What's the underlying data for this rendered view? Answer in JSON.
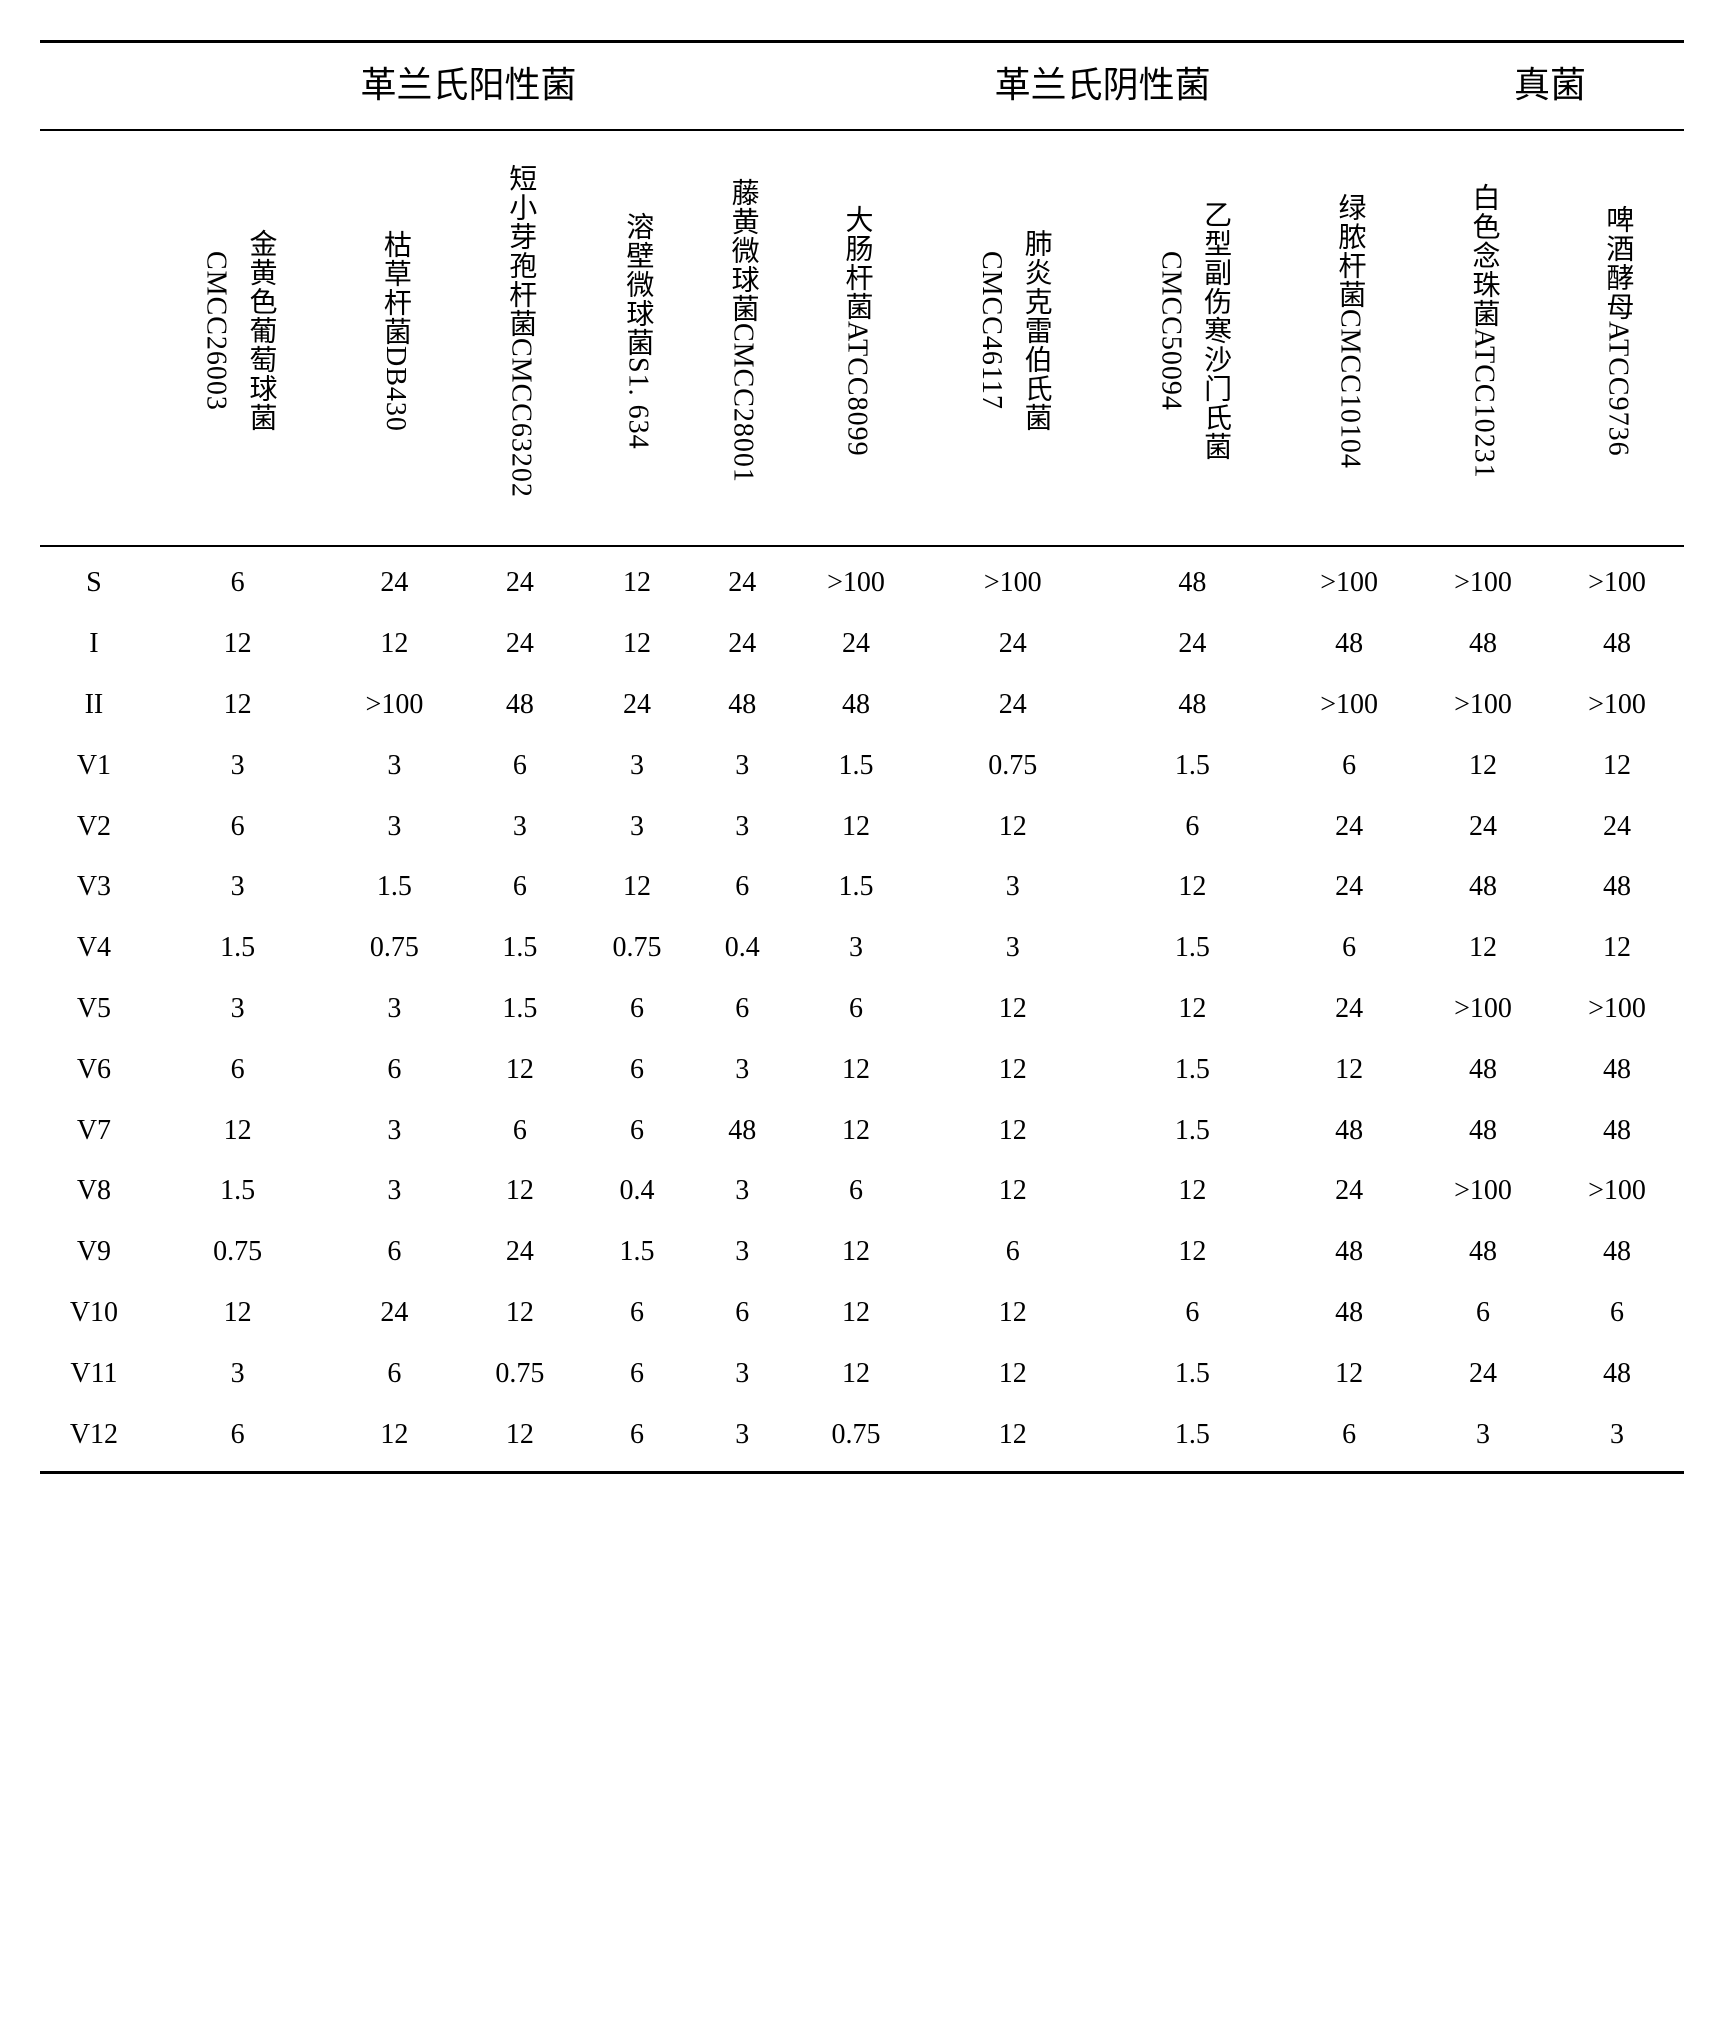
{
  "table": {
    "type": "table",
    "background_color": "#ffffff",
    "text_color": "#000000",
    "border_color": "#000000",
    "group_header_fontsize": 36,
    "cell_fontsize": 28,
    "col_header_fontsize": 28,
    "border_top_width": 3,
    "border_bottom_width": 3,
    "inner_border_width": 2,
    "groups": [
      {
        "label": "革兰氏阳性菌",
        "span": 5
      },
      {
        "label": "革兰氏阴性菌",
        "span": 4
      },
      {
        "label": "真菌",
        "span": 2
      }
    ],
    "columns": [
      "金黄色葡萄球菌CMCC26003",
      "枯草杆菌DB430",
      "短小芽孢杆菌CMCC63202",
      "溶壁微球菌S1. 634",
      "藤黄微球菌CMCC28001",
      "大肠杆菌ATCC8099",
      "肺炎克雷伯氏菌CMCC46117",
      "乙型副伤寒沙门氏菌CMCC50094",
      "绿脓杆菌CMCC10104",
      "白色念珠菌ATCC10231",
      "啤酒酵母ATCC9736"
    ],
    "row_labels": [
      "S",
      "I",
      "II",
      "V1",
      "V2",
      "V3",
      "V4",
      "V5",
      "V6",
      "V7",
      "V8",
      "V9",
      "V10",
      "V11",
      "V12"
    ],
    "rows": [
      [
        "6",
        "24",
        "24",
        "12",
        "24",
        ">100",
        ">100",
        "48",
        ">100",
        ">100",
        ">100"
      ],
      [
        "12",
        "12",
        "24",
        "12",
        "24",
        "24",
        "24",
        "24",
        "48",
        "48",
        "48"
      ],
      [
        "12",
        ">100",
        "48",
        "24",
        "48",
        "48",
        "24",
        "48",
        ">100",
        ">100",
        ">100"
      ],
      [
        "3",
        "3",
        "6",
        "3",
        "3",
        "1.5",
        "0.75",
        "1.5",
        "6",
        "12",
        "12"
      ],
      [
        "6",
        "3",
        "3",
        "3",
        "3",
        "12",
        "12",
        "6",
        "24",
        "24",
        "24"
      ],
      [
        "3",
        "1.5",
        "6",
        "12",
        "6",
        "1.5",
        "3",
        "12",
        "24",
        "48",
        "48"
      ],
      [
        "1.5",
        "0.75",
        "1.5",
        "0.75",
        "0.4",
        "3",
        "3",
        "1.5",
        "6",
        "12",
        "12"
      ],
      [
        "3",
        "3",
        "1.5",
        "6",
        "6",
        "6",
        "12",
        "12",
        "24",
        ">100",
        ">100"
      ],
      [
        "6",
        "6",
        "12",
        "6",
        "3",
        "12",
        "12",
        "1.5",
        "12",
        "48",
        "48"
      ],
      [
        "12",
        "3",
        "6",
        "6",
        "48",
        "12",
        "12",
        "1.5",
        "48",
        "48",
        "48"
      ],
      [
        "1.5",
        "3",
        "12",
        "0.4",
        "3",
        "6",
        "12",
        "12",
        "24",
        ">100",
        ">100"
      ],
      [
        "0.75",
        "6",
        "24",
        "1.5",
        "3",
        "12",
        "6",
        "12",
        "48",
        "48",
        "48"
      ],
      [
        "12",
        "24",
        "12",
        "6",
        "6",
        "12",
        "12",
        "6",
        "48",
        "6",
        "6"
      ],
      [
        "3",
        "6",
        "0.75",
        "6",
        "3",
        "12",
        "12",
        "1.5",
        "12",
        "24",
        "48"
      ],
      [
        "6",
        "12",
        "12",
        "6",
        "3",
        "0.75",
        "12",
        "1.5",
        "6",
        "3",
        "3"
      ]
    ]
  }
}
